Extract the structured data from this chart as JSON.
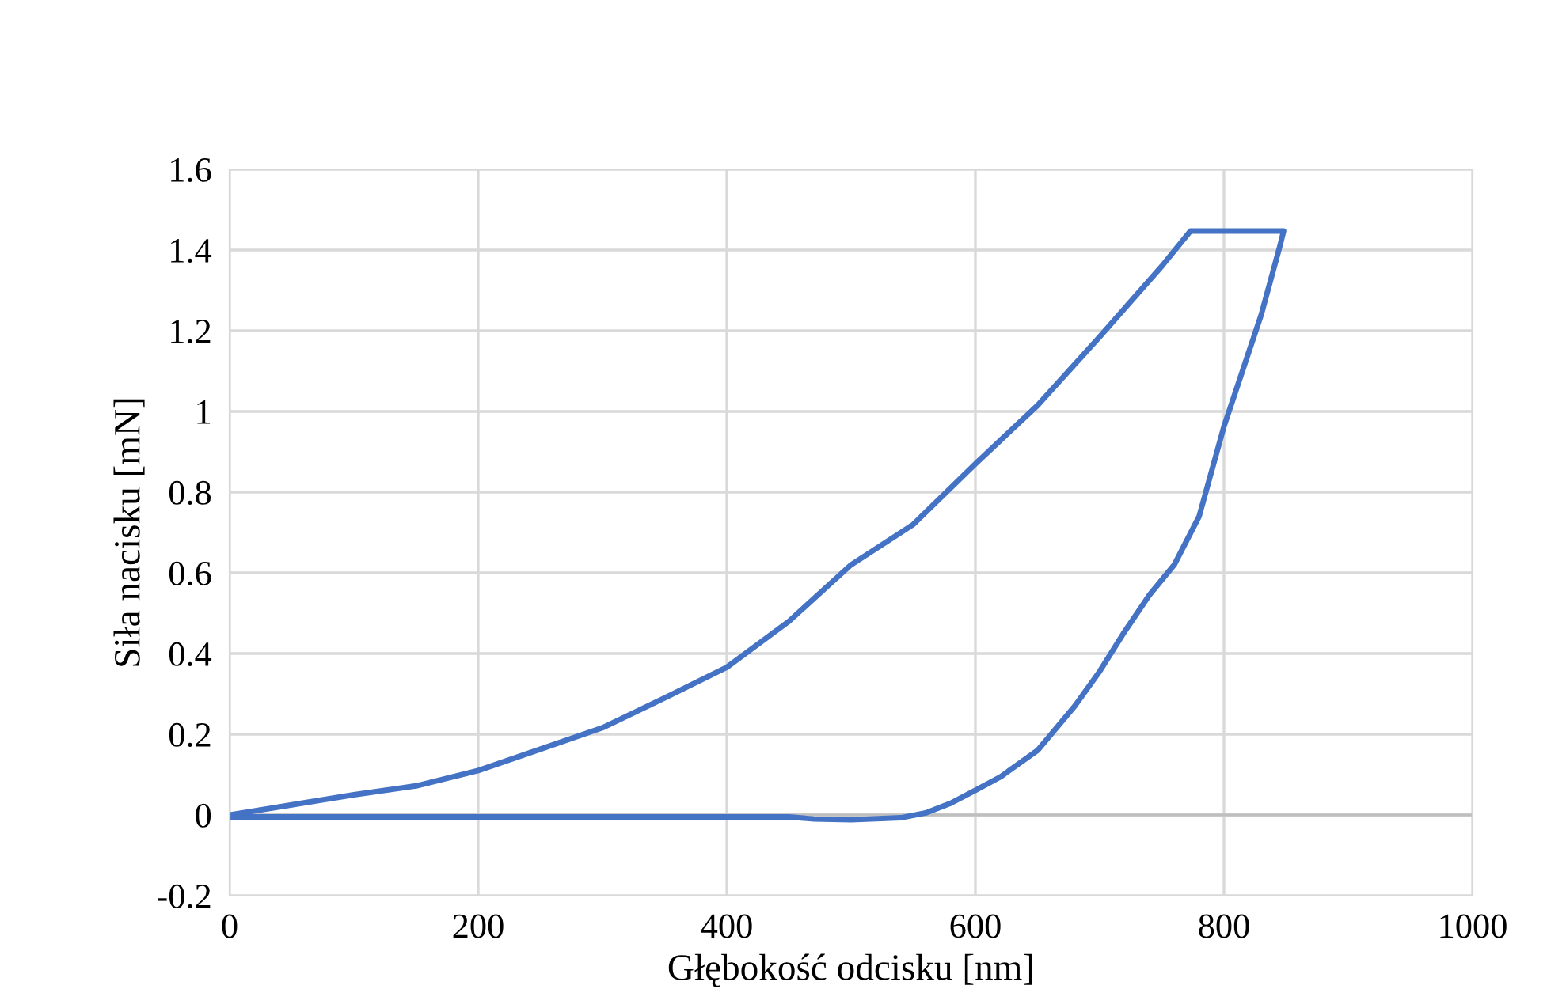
{
  "chart_data": {
    "type": "line",
    "xlabel": "Głębokość odcisku [nm]",
    "ylabel": "Siła nacisku [mN]",
    "xlim": [
      0,
      1000
    ],
    "ylim": [
      -0.2,
      1.6
    ],
    "xticks": [
      0,
      200,
      400,
      600,
      800,
      1000
    ],
    "yticks": [
      -0.2,
      0,
      0.2,
      0.4,
      0.6,
      0.8,
      1,
      1.2,
      1.4,
      1.6
    ],
    "grid": true,
    "marker": "none",
    "line_style": "solid",
    "series": [
      {
        "color": "#4472c4",
        "x": [
          0,
          50,
          100,
          150,
          200,
          250,
          300,
          350,
          400,
          450,
          500,
          550,
          600,
          650,
          700,
          750,
          773,
          848,
          845,
          830,
          810,
          800,
          780,
          760,
          740,
          720,
          700,
          680,
          650,
          620,
          600,
          580,
          560,
          540,
          500,
          470,
          450,
          0
        ],
        "values": [
          0,
          0.025,
          0.05,
          0.072,
          0.11,
          0.163,
          0.216,
          0.29,
          0.366,
          0.48,
          0.62,
          0.72,
          0.87,
          1.015,
          1.185,
          1.36,
          1.447,
          1.447,
          1.41,
          1.24,
          1.055,
          0.963,
          0.74,
          0.62,
          0.545,
          0.454,
          0.356,
          0.27,
          0.16,
          0.094,
          0.061,
          0.029,
          0.005,
          -0.007,
          -0.012,
          -0.01,
          -0.005,
          -0.005
        ]
      }
    ]
  }
}
